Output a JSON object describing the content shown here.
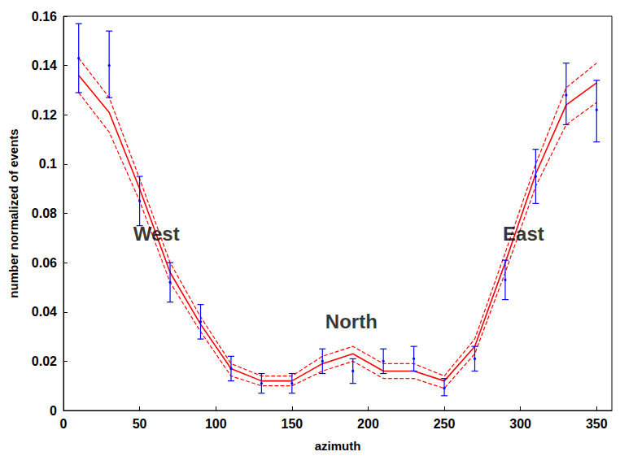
{
  "chart_data": {
    "type": "line",
    "xlabel": "azimuth",
    "ylabel": "number normalized of events",
    "x": [
      10,
      30,
      50,
      70,
      90,
      110,
      130,
      150,
      170,
      190,
      210,
      230,
      250,
      270,
      290,
      310,
      330,
      350
    ],
    "series": [
      {
        "type": "line",
        "color": "#ff0000",
        "line_style": "solid",
        "values": [
          0.136,
          0.121,
          0.09,
          0.056,
          0.035,
          0.017,
          0.012,
          0.012,
          0.019,
          0.023,
          0.016,
          0.016,
          0.012,
          0.026,
          0.06,
          0.096,
          0.124,
          0.133
        ]
      },
      {
        "type": "line",
        "color": "#ff0000",
        "line_style": "dashed",
        "values": [
          0.143,
          0.127,
          0.094,
          0.06,
          0.038,
          0.019,
          0.014,
          0.014,
          0.022,
          0.026,
          0.019,
          0.019,
          0.014,
          0.029,
          0.064,
          0.1,
          0.131,
          0.141
        ]
      },
      {
        "type": "line",
        "color": "#ff0000",
        "line_style": "dashed",
        "values": [
          0.129,
          0.113,
          0.085,
          0.052,
          0.032,
          0.014,
          0.01,
          0.01,
          0.016,
          0.02,
          0.013,
          0.013,
          0.009,
          0.023,
          0.056,
          0.091,
          0.116,
          0.125
        ]
      },
      {
        "type": "scatter",
        "color": "#0000ff",
        "marker": "dot",
        "values": [
          0.143,
          0.14,
          0.085,
          0.052,
          0.036,
          0.017,
          0.011,
          0.011,
          0.02,
          0.016,
          0.02,
          0.021,
          0.009,
          0.021,
          0.053,
          0.095,
          0.128,
          0.122
        ],
        "error_low": [
          0.129,
          0.127,
          0.075,
          0.044,
          0.029,
          0.012,
          0.007,
          0.007,
          0.015,
          0.011,
          0.015,
          0.016,
          0.006,
          0.016,
          0.045,
          0.084,
          0.116,
          0.109
        ],
        "error_high": [
          0.157,
          0.154,
          0.095,
          0.06,
          0.043,
          0.022,
          0.015,
          0.015,
          0.025,
          0.021,
          0.025,
          0.026,
          0.013,
          0.026,
          0.061,
          0.106,
          0.141,
          0.134
        ]
      }
    ],
    "annotations": [
      {
        "text": "West",
        "x": 61,
        "y": 0.0717
      },
      {
        "text": "East",
        "x": 302,
        "y": 0.0717
      },
      {
        "text": "North",
        "x": 189,
        "y": 0.036
      }
    ],
    "xlim": [
      0,
      360
    ],
    "xticks": [
      0,
      50,
      100,
      150,
      200,
      250,
      300,
      350
    ],
    "ylim": [
      0,
      0.16
    ],
    "yticks": [
      0,
      0.02,
      0.04,
      0.06,
      0.08,
      0.1,
      0.12,
      0.14,
      0.16
    ],
    "grid": false
  }
}
